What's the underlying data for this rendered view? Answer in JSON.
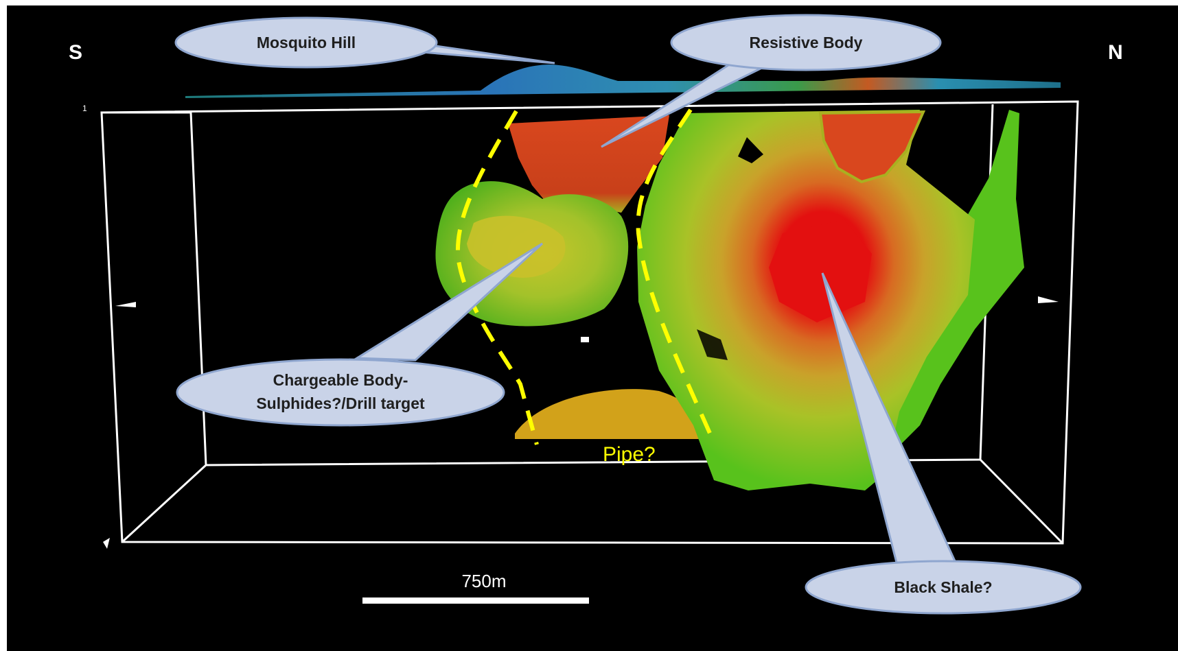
{
  "compass": {
    "south": "S",
    "north": "N"
  },
  "callouts": {
    "mosquito_hill": "Mosquito Hill",
    "resistive_body": "Resistive Body",
    "chargeable_body_line1": "Chargeable Body-",
    "chargeable_body_line2": "Sulphides?/Drill target",
    "black_shale": "Black Shale?"
  },
  "annotations": {
    "pipe": "Pipe?"
  },
  "scale_bar": {
    "label": "750m"
  },
  "axis_tick": {
    "label": "1"
  },
  "colors": {
    "background": "#000000",
    "frame": "#ffffff",
    "callout_fill": "#c9d3e8",
    "callout_stroke": "#8fa6cf",
    "callout_text": "#1f1f1f",
    "pipe_outline": "#ffff00",
    "pipe_label": "#ffff00",
    "resistive": "#d9471e",
    "chargeable_high": "#e31010",
    "chargeable_mid": "#c9c12a",
    "chargeable_low": "#58c21c",
    "deep_body": "#d2a21a"
  }
}
